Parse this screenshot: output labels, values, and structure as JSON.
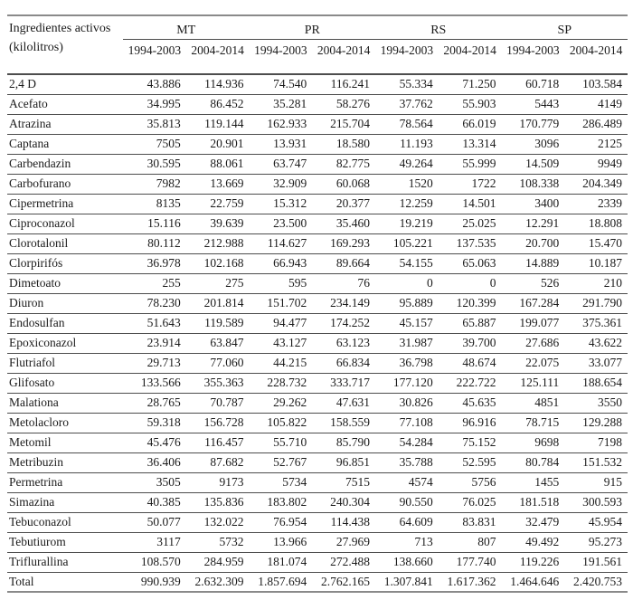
{
  "table": {
    "header": {
      "label_line1": "Ingredientes activos",
      "label_line2": "(kilolitros)",
      "groups": [
        "MT",
        "PR",
        "RS",
        "SP"
      ],
      "periods": [
        "1994-2003",
        "2004-2014"
      ]
    },
    "rows": [
      {
        "label": "2,4 D",
        "values": [
          "43.886",
          "114.936",
          "74.540",
          "116.241",
          "55.334",
          "71.250",
          "60.718",
          "103.584"
        ]
      },
      {
        "label": "Acefato",
        "values": [
          "34.995",
          "86.452",
          "35.281",
          "58.276",
          "37.762",
          "55.903",
          "5443",
          "4149"
        ]
      },
      {
        "label": "Atrazina",
        "values": [
          "35.813",
          "119.144",
          "162.933",
          "215.704",
          "78.564",
          "66.019",
          "170.779",
          "286.489"
        ]
      },
      {
        "label": "Captana",
        "values": [
          "7505",
          "20.901",
          "13.931",
          "18.580",
          "11.193",
          "13.314",
          "3096",
          "2125"
        ]
      },
      {
        "label": "Carbendazin",
        "values": [
          "30.595",
          "88.061",
          "63.747",
          "82.775",
          "49.264",
          "55.999",
          "14.509",
          "9949"
        ]
      },
      {
        "label": "Carbofurano",
        "values": [
          "7982",
          "13.669",
          "32.909",
          "60.068",
          "1520",
          "1722",
          "108.338",
          "204.349"
        ]
      },
      {
        "label": "Cipermetrina",
        "values": [
          "8135",
          "22.759",
          "15.312",
          "20.377",
          "12.259",
          "14.501",
          "3400",
          "2339"
        ]
      },
      {
        "label": "Ciproconazol",
        "values": [
          "15.116",
          "39.639",
          "23.500",
          "35.460",
          "19.219",
          "25.025",
          "12.291",
          "18.808"
        ]
      },
      {
        "label": "Clorotalonil",
        "values": [
          "80.112",
          "212.988",
          "114.627",
          "169.293",
          "105.221",
          "137.535",
          "20.700",
          "15.470"
        ]
      },
      {
        "label": "Clorpirifós",
        "values": [
          "36.978",
          "102.168",
          "66.943",
          "89.664",
          "54.155",
          "65.063",
          "14.889",
          "10.187"
        ]
      },
      {
        "label": "Dimetoato",
        "values": [
          "255",
          "275",
          "595",
          "76",
          "0",
          "0",
          "526",
          "210"
        ]
      },
      {
        "label": "Diuron",
        "values": [
          "78.230",
          "201.814",
          "151.702",
          "234.149",
          "95.889",
          "120.399",
          "167.284",
          "291.790"
        ]
      },
      {
        "label": "Endosulfan",
        "values": [
          "51.643",
          "119.589",
          "94.477",
          "174.252",
          "45.157",
          "65.887",
          "199.077",
          "375.361"
        ]
      },
      {
        "label": "Epoxiconazol",
        "values": [
          "23.914",
          "63.847",
          "43.127",
          "63.123",
          "31.987",
          "39.700",
          "27.686",
          "43.622"
        ]
      },
      {
        "label": "Flutriafol",
        "values": [
          "29.713",
          "77.060",
          "44.215",
          "66.834",
          "36.798",
          "48.674",
          "22.075",
          "33.077"
        ]
      },
      {
        "label": "Glifosato",
        "values": [
          "133.566",
          "355.363",
          "228.732",
          "333.717",
          "177.120",
          "222.722",
          "125.111",
          "188.654"
        ]
      },
      {
        "label": "Malationa",
        "values": [
          "28.765",
          "70.787",
          "29.262",
          "47.631",
          "30.826",
          "45.635",
          "4851",
          "3550"
        ]
      },
      {
        "label": "Metolacloro",
        "values": [
          "59.318",
          "156.728",
          "105.822",
          "158.559",
          "77.108",
          "96.916",
          "78.715",
          "129.288"
        ]
      },
      {
        "label": "Metomil",
        "values": [
          "45.476",
          "116.457",
          "55.710",
          "85.790",
          "54.284",
          "75.152",
          "9698",
          "7198"
        ]
      },
      {
        "label": "Metribuzin",
        "values": [
          "36.406",
          "87.682",
          "52.767",
          "96.851",
          "35.788",
          "52.595",
          "80.784",
          "151.532"
        ]
      },
      {
        "label": "Permetrina",
        "values": [
          "3505",
          "9173",
          "5734",
          "7515",
          "4574",
          "5756",
          "1455",
          "915"
        ]
      },
      {
        "label": "Simazina",
        "values": [
          "40.385",
          "135.836",
          "183.802",
          "240.304",
          "90.550",
          "76.025",
          "181.518",
          "300.593"
        ]
      },
      {
        "label": "Tebuconazol",
        "values": [
          "50.077",
          "132.022",
          "76.954",
          "114.438",
          "64.609",
          "83.831",
          "32.479",
          "45.954"
        ]
      },
      {
        "label": "Tebutiurom",
        "values": [
          "3117",
          "5732",
          "13.966",
          "27.969",
          "713",
          "807",
          "49.492",
          "95.273"
        ]
      },
      {
        "label": "Triflurallina",
        "values": [
          "108.570",
          "284.959",
          "181.074",
          "272.488",
          "138.660",
          "177.740",
          "119.226",
          "191.561"
        ]
      }
    ],
    "total": {
      "label": "Total",
      "values": [
        "990.939",
        "2.632.309",
        "1.857.694",
        "2.762.165",
        "1.307.841",
        "1.617.362",
        "1.464.646",
        "2.420.753"
      ]
    }
  },
  "colors": {
    "background": "#ffffff",
    "text": "#1b1b1b",
    "row_line": "#4d4d4d",
    "outer_line": "#8a8a8a"
  }
}
